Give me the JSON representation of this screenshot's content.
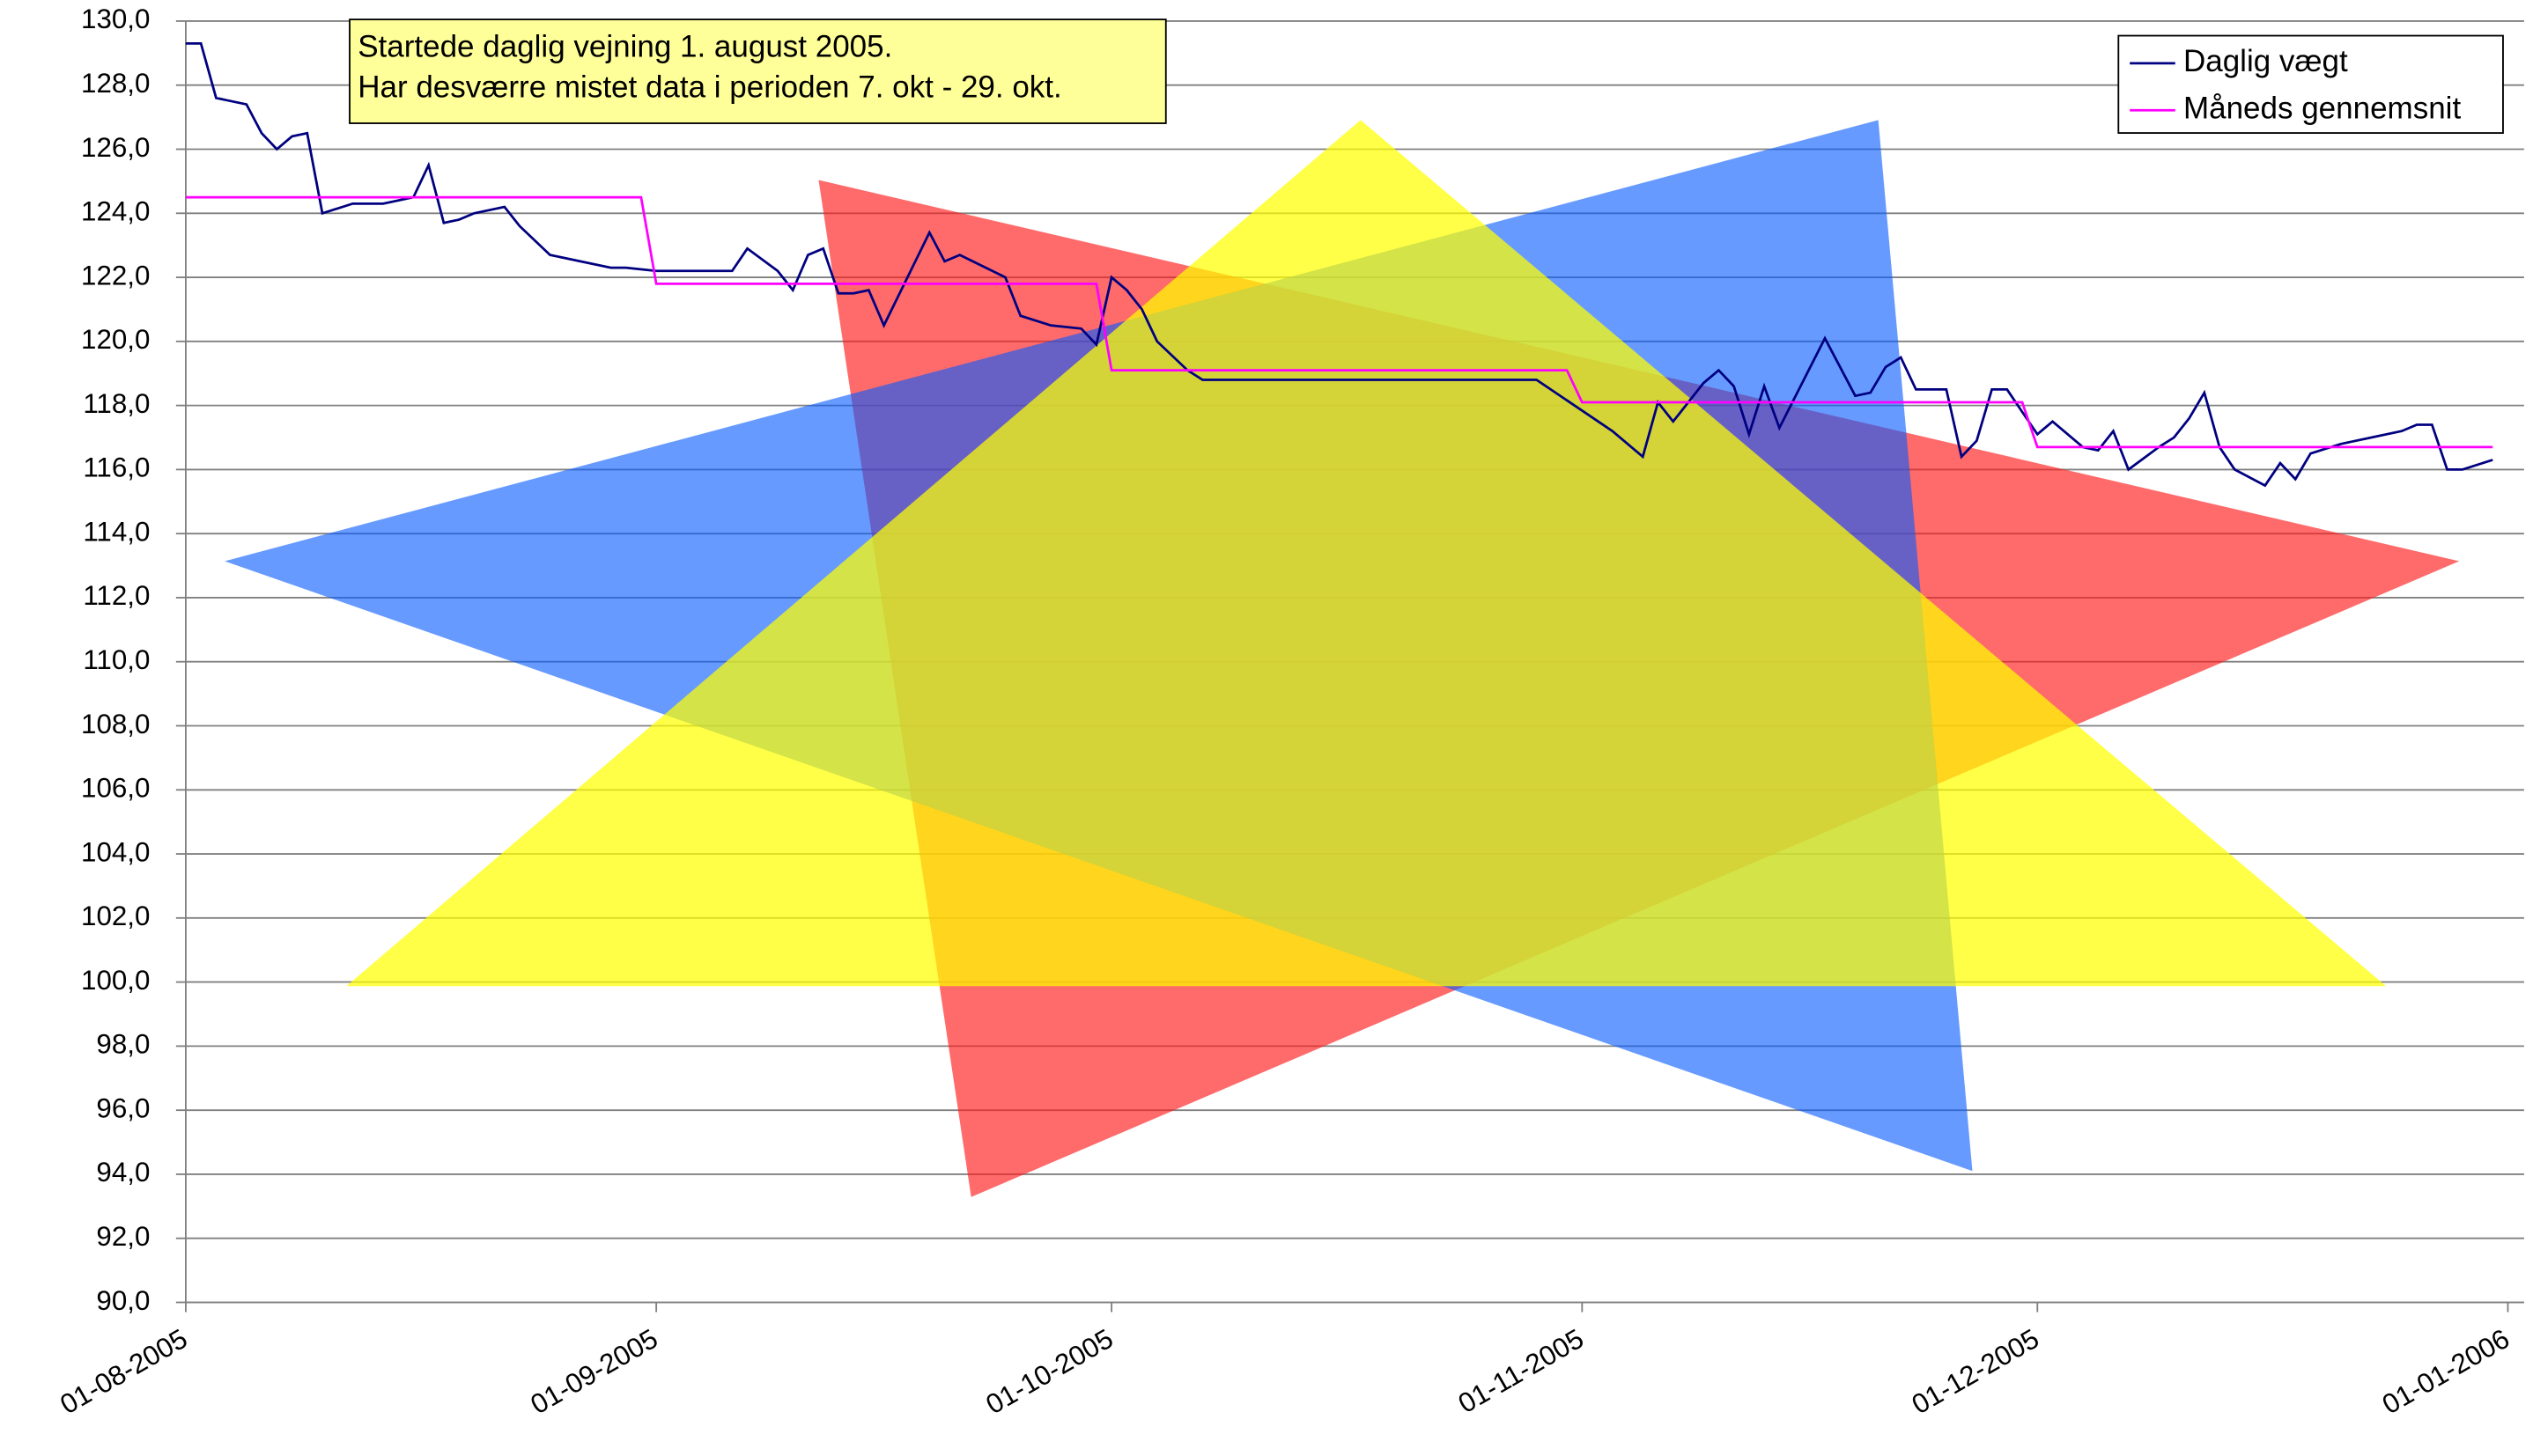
{
  "chart_data": {
    "type": "line",
    "annotations": [
      "Startede daglig vejning 1. august 2005.",
      "Har desværre mistet data i perioden 7. okt - 29. okt."
    ],
    "xlim": [
      "01-08-2005",
      "01-01-2006"
    ],
    "xticks": [
      "01-08-2005",
      "01-09-2005",
      "01-10-2005",
      "01-11-2005",
      "01-12-2005",
      "01-01-2006"
    ],
    "ylim": [
      90,
      130
    ],
    "yticks": [
      {
        "value": 90,
        "label": "90,0"
      },
      {
        "value": 92,
        "label": "92,0"
      },
      {
        "value": 94,
        "label": "94,0"
      },
      {
        "value": 96,
        "label": "96,0"
      },
      {
        "value": 98,
        "label": "98,0"
      },
      {
        "value": 100,
        "label": "100,0"
      },
      {
        "value": 102,
        "label": "102,0"
      },
      {
        "value": 104,
        "label": "104,0"
      },
      {
        "value": 106,
        "label": "106,0"
      },
      {
        "value": 108,
        "label": "108,0"
      },
      {
        "value": 110,
        "label": "110,0"
      },
      {
        "value": 112,
        "label": "112,0"
      },
      {
        "value": 114,
        "label": "114,0"
      },
      {
        "value": 116,
        "label": "116,0"
      },
      {
        "value": 118,
        "label": "118,0"
      },
      {
        "value": 120,
        "label": "120,0"
      },
      {
        "value": 122,
        "label": "122,0"
      },
      {
        "value": 124,
        "label": "124,0"
      },
      {
        "value": 126,
        "label": "126,0"
      },
      {
        "value": 128,
        "label": "128,0"
      },
      {
        "value": 130,
        "label": "130,0"
      }
    ],
    "grid": true,
    "legend": "upper right",
    "series": [
      {
        "name": "Daglig vægt",
        "color": "#000080",
        "x": [
          "01-08-2005",
          "02-08-2005",
          "03-08-2005",
          "05-08-2005",
          "06-08-2005",
          "07-08-2005",
          "08-08-2005",
          "09-08-2005",
          "10-08-2005",
          "12-08-2005",
          "14-08-2005",
          "16-08-2005",
          "17-08-2005",
          "18-08-2005",
          "19-08-2005",
          "20-08-2005",
          "22-08-2005",
          "23-08-2005",
          "25-08-2005",
          "29-08-2005",
          "30-08-2005",
          "01-09-2005",
          "06-09-2005",
          "07-09-2005",
          "09-09-2005",
          "10-09-2005",
          "11-09-2005",
          "12-09-2005",
          "13-09-2005",
          "14-09-2005",
          "15-09-2005",
          "16-09-2005",
          "19-09-2005",
          "20-09-2005",
          "21-09-2005",
          "24-09-2005",
          "25-09-2005",
          "27-09-2005",
          "29-09-2005",
          "30-09-2005",
          "01-10-2005",
          "02-10-2005",
          "03-10-2005",
          "04-10-2005",
          "06-10-2005",
          "07-10-2005",
          "29-10-2005",
          "03-11-2005",
          "05-11-2005",
          "06-11-2005",
          "07-11-2005",
          "09-11-2005",
          "10-11-2005",
          "11-11-2005",
          "12-11-2005",
          "13-11-2005",
          "14-11-2005",
          "17-11-2005",
          "19-11-2005",
          "20-11-2005",
          "21-11-2005",
          "22-11-2005",
          "23-11-2005",
          "25-11-2005",
          "26-11-2005",
          "27-11-2005",
          "28-11-2005",
          "29-11-2005",
          "01-12-2005",
          "02-12-2005",
          "04-12-2005",
          "05-12-2005",
          "06-12-2005",
          "07-12-2005",
          "09-12-2005",
          "10-12-2005",
          "11-12-2005",
          "12-12-2005",
          "13-12-2005",
          "14-12-2005",
          "16-12-2005",
          "17-12-2005",
          "18-12-2005",
          "19-12-2005",
          "21-12-2005",
          "23-12-2005",
          "25-12-2005",
          "26-12-2005",
          "27-12-2005",
          "28-12-2005",
          "29-12-2005",
          "31-12-2005"
        ],
        "values": [
          129.3,
          129.3,
          127.6,
          127.4,
          126.5,
          126.0,
          126.4,
          126.5,
          124.0,
          124.3,
          124.3,
          124.5,
          125.5,
          123.7,
          123.8,
          124.0,
          124.2,
          123.6,
          122.7,
          122.3,
          122.3,
          122.2,
          122.2,
          122.9,
          122.2,
          121.6,
          122.7,
          122.9,
          121.5,
          121.5,
          121.6,
          120.5,
          123.4,
          122.5,
          122.7,
          122.0,
          120.8,
          120.5,
          120.4,
          119.9,
          122.0,
          121.6,
          121.0,
          120.0,
          119.1,
          118.8,
          118.8,
          117.2,
          116.4,
          118.1,
          117.5,
          118.7,
          119.1,
          118.6,
          117.1,
          118.6,
          117.3,
          120.1,
          118.3,
          118.4,
          119.2,
          119.5,
          118.5,
          118.5,
          116.4,
          116.9,
          118.5,
          118.5,
          117.1,
          117.5,
          116.7,
          116.6,
          117.2,
          116.0,
          116.7,
          117.0,
          117.6,
          118.4,
          116.7,
          116.0,
          115.5,
          116.2,
          115.7,
          116.5,
          116.8,
          117.0,
          117.2,
          117.4,
          117.4,
          116.0,
          116.0,
          116.3
        ]
      },
      {
        "name": "Måneds gennemsnit",
        "color": "#ff00ff",
        "x": [
          "01-08-2005",
          "31-08-2005",
          "01-09-2005",
          "30-09-2005",
          "01-10-2005",
          "31-10-2005",
          "01-11-2005",
          "30-11-2005",
          "01-12-2005",
          "31-12-2005"
        ],
        "values": [
          124.5,
          124.5,
          121.8,
          121.8,
          119.1,
          119.1,
          118.1,
          118.1,
          116.7,
          116.7
        ]
      }
    ]
  }
}
